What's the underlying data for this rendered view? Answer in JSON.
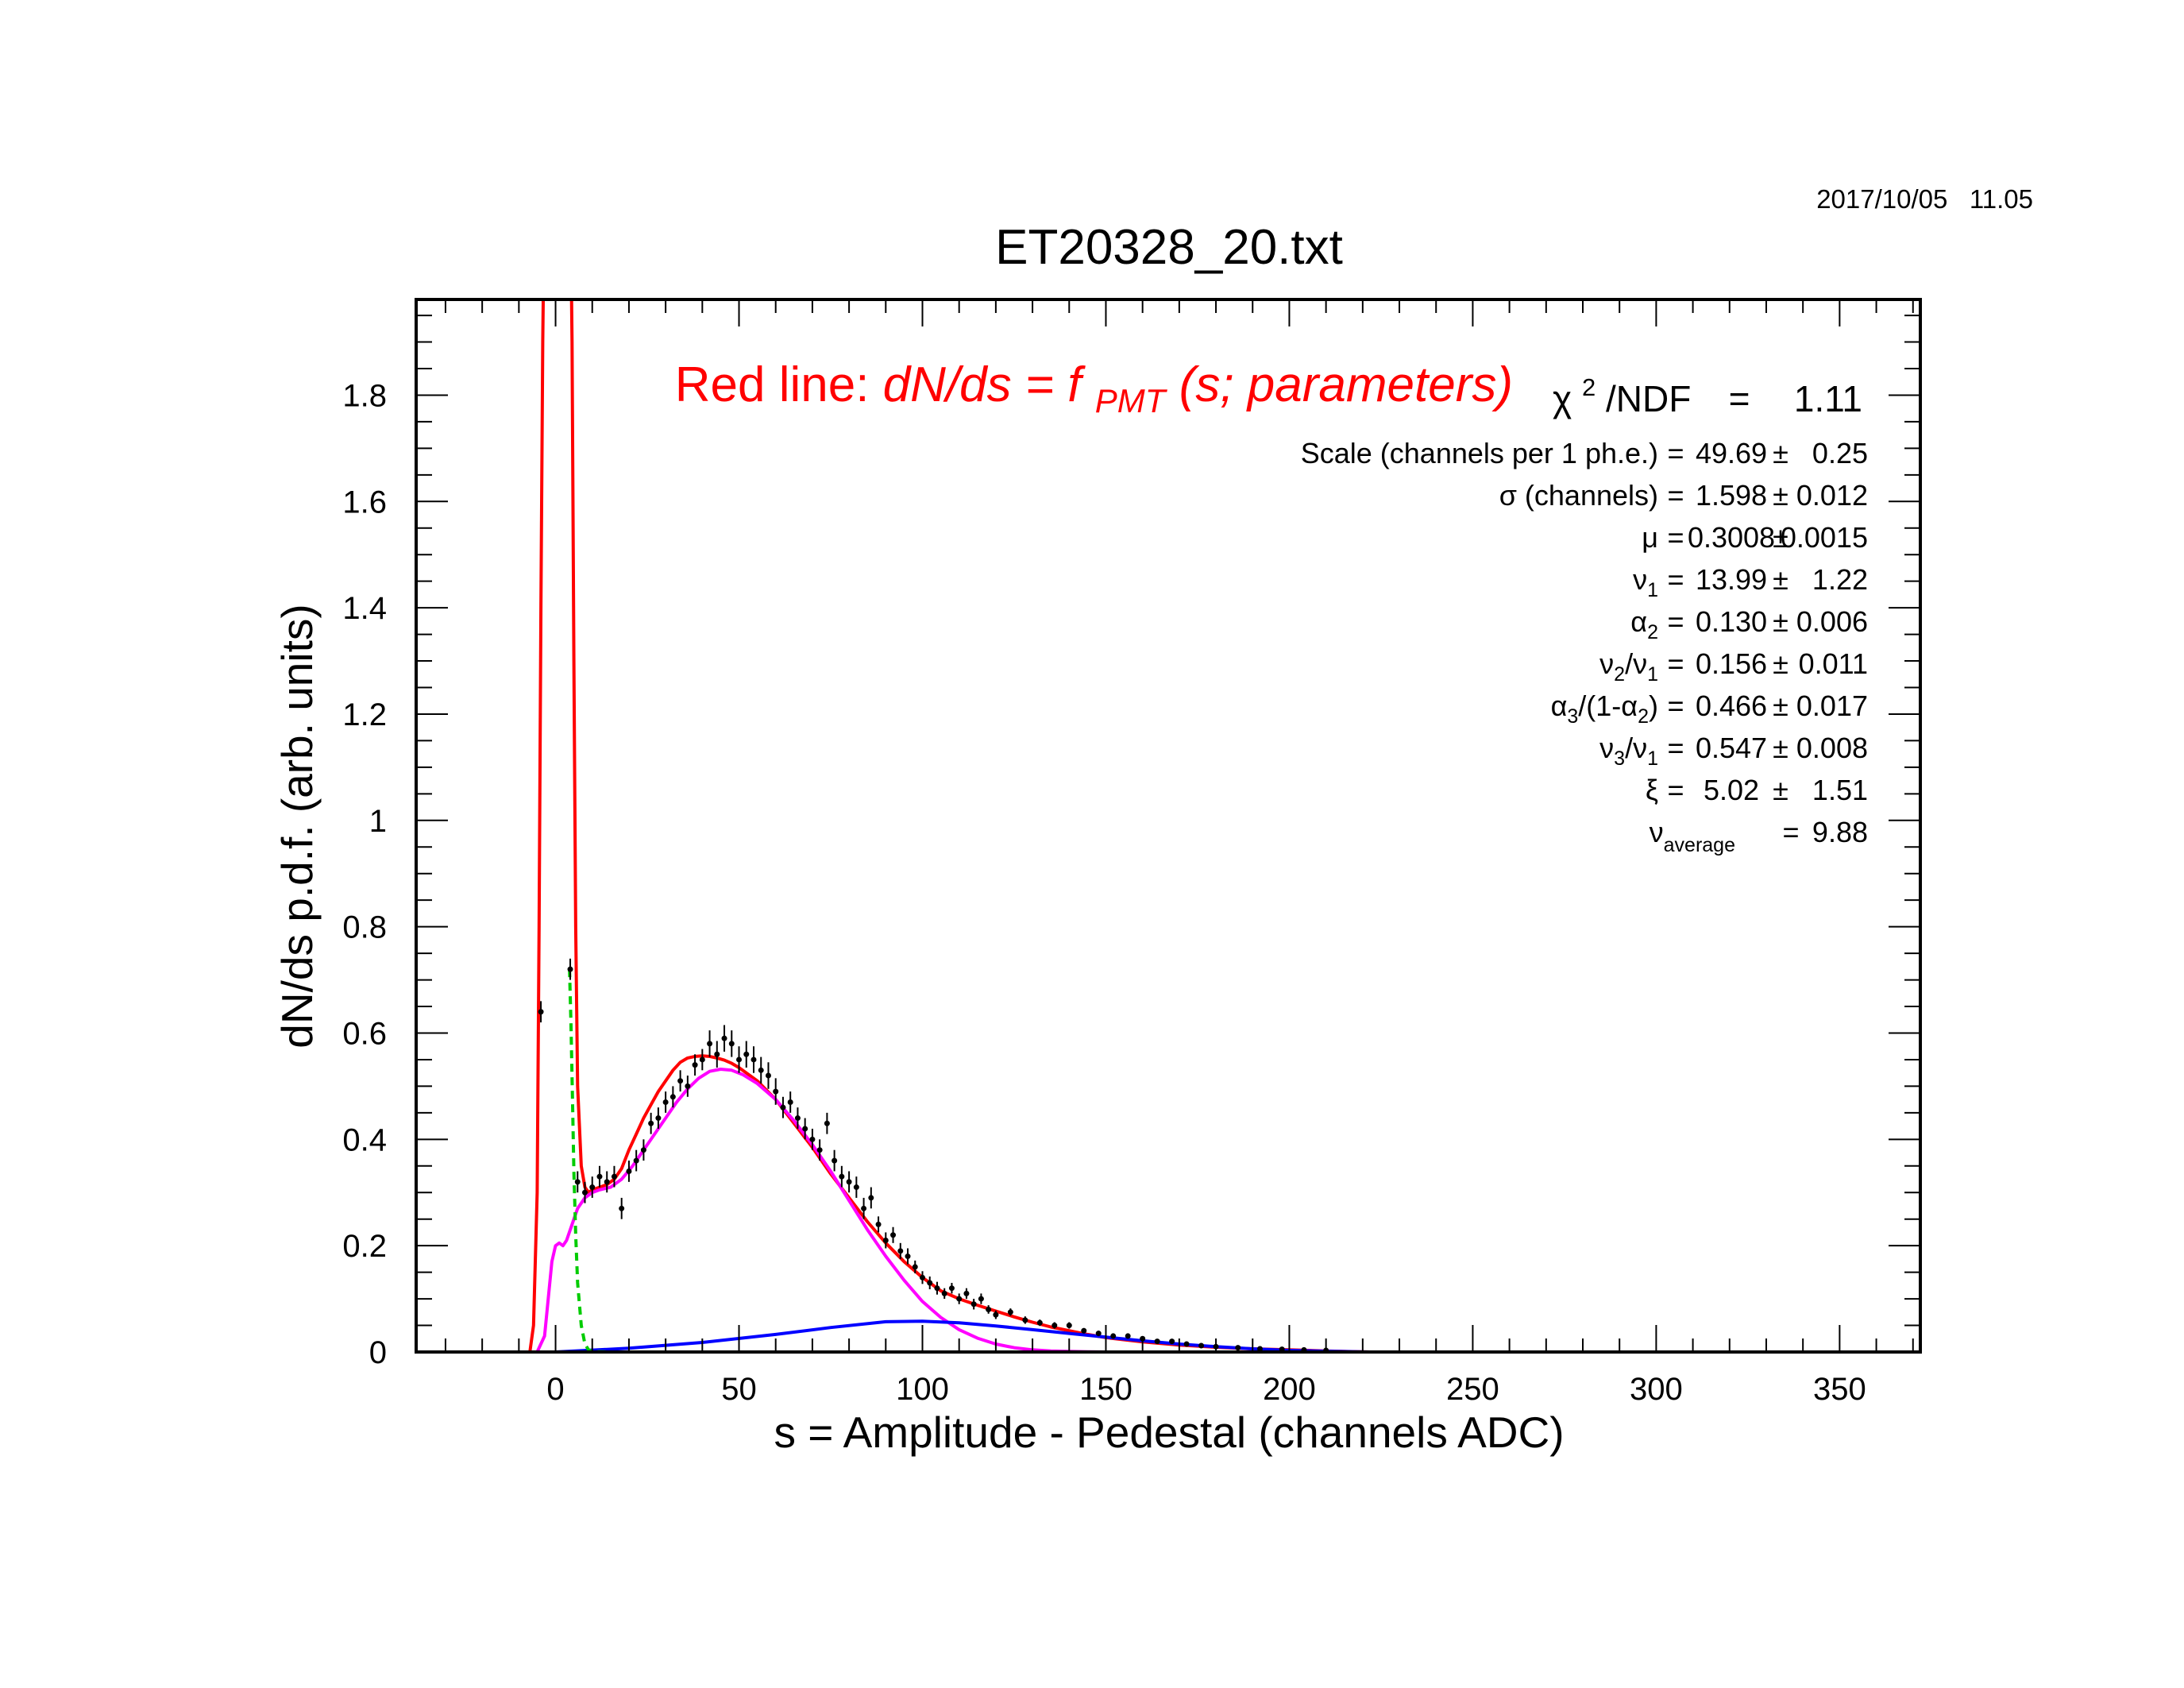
{
  "timestamp": "2017/10/05   11.05",
  "chart_data": {
    "type": "line",
    "title": "ET20328_20.txt",
    "xlabel": "s = Amplitude - Pedestal (channels ADC)",
    "ylabel": "dN/ds p.d.f. (arb. units)",
    "xlim": [
      -38,
      372
    ],
    "ylim": [
      0,
      1.98
    ],
    "x_ticks": [
      0,
      50,
      100,
      150,
      200,
      250,
      300,
      350
    ],
    "y_ticks": [
      0,
      0.2,
      0.4,
      0.6,
      0.8,
      1,
      1.2,
      1.4,
      1.6,
      1.8
    ],
    "y_tick_labels": [
      "0",
      "0.2",
      "0.4",
      "0.6",
      "0.8",
      "1",
      "1.2",
      "1.4",
      "1.6",
      "1.8"
    ],
    "legend_text": {
      "prefix": "Red line:",
      "formula_main": "dN/ds = f",
      "formula_sub": "PMT",
      "formula_tail": "(s; parameters)"
    },
    "fit_stats": {
      "chi2_label": "χ",
      "chi2_sup": "2",
      "chi2_rest": "/NDF",
      "chi2_eq": "=",
      "chi2_value": "1.11",
      "parameters": [
        {
          "name": "Scale (channels per 1 ph.e.)",
          "sub": "",
          "tail": "",
          "eq": "=",
          "value": "49.69",
          "pm": "±",
          "error": "0.25"
        },
        {
          "name": "σ (channels)",
          "sub": "",
          "tail": "",
          "eq": "=",
          "value": "1.598",
          "pm": "±",
          "error": "0.012"
        },
        {
          "name": "μ",
          "sub": "",
          "tail": "",
          "eq": "=",
          "value": "0.3008",
          "pm": "±",
          "error": "0.0015"
        },
        {
          "name": "ν",
          "sub": "1",
          "tail": "",
          "eq": "=",
          "value": "13.99",
          "pm": "±",
          "error": "1.22"
        },
        {
          "name": "α",
          "sub": "2",
          "tail": "",
          "eq": "=",
          "value": "0.130",
          "pm": "±",
          "error": "0.006"
        },
        {
          "name": "ν",
          "sub": "2",
          "tail": "/ν",
          "sub2": "1",
          "eq": "=",
          "value": "0.156",
          "pm": "±",
          "error": "0.011"
        },
        {
          "name": "α",
          "sub": "3",
          "tail": "/(1-α",
          "sub2": "2",
          "tail2": ")",
          "eq": "=",
          "value": "0.466",
          "pm": "±",
          "error": "0.017"
        },
        {
          "name": "ν",
          "sub": "3",
          "tail": "/ν",
          "sub2": "1",
          "eq": "=",
          "value": "0.547",
          "pm": "±",
          "error": "0.008"
        },
        {
          "name": "ξ",
          "sub": "",
          "tail": "",
          "eq": "=",
          "value": "5.02",
          "pm": "±",
          "error": "1.51"
        }
      ],
      "nu_average": {
        "name": "ν",
        "sub": "average",
        "eq": "=",
        "value": "9.88"
      }
    },
    "colors": {
      "total_fit": "#ff0000",
      "multi_pe": "#ff00ff",
      "background": "#0000ff",
      "pedestal": "#00cc00",
      "data": "#000000",
      "legend_text": "#ff0000"
    },
    "series": [
      {
        "kind": "curve",
        "color": "#ff0000",
        "x": [
          -7,
          -6,
          -5,
          -4.5,
          -4,
          -3.5,
          -3,
          4,
          4.5,
          5,
          5.5,
          6,
          7,
          8,
          9,
          10,
          12,
          14,
          16,
          18,
          20,
          22,
          24,
          26,
          28,
          30,
          32,
          34,
          36,
          38,
          40,
          42,
          44,
          46,
          48,
          50,
          55,
          60,
          65,
          70,
          75,
          80,
          85,
          90,
          95,
          100,
          105,
          110,
          115,
          120,
          125,
          130,
          135,
          140,
          145,
          150,
          160,
          170,
          180,
          190,
          200,
          210,
          222
        ],
        "y": [
          0,
          0.05,
          0.3,
          0.8,
          1.4,
          1.9,
          2.2,
          2.2,
          1.9,
          1.3,
          0.8,
          0.5,
          0.35,
          0.31,
          0.3,
          0.305,
          0.31,
          0.315,
          0.325,
          0.345,
          0.38,
          0.41,
          0.44,
          0.465,
          0.49,
          0.51,
          0.53,
          0.545,
          0.553,
          0.556,
          0.557,
          0.556,
          0.553,
          0.549,
          0.543,
          0.535,
          0.51,
          0.475,
          0.43,
          0.385,
          0.335,
          0.29,
          0.245,
          0.205,
          0.17,
          0.14,
          0.115,
          0.1,
          0.088,
          0.077,
          0.066,
          0.056,
          0.047,
          0.04,
          0.033,
          0.027,
          0.019,
          0.013,
          0.009,
          0.006,
          0.004,
          0.002,
          0
        ]
      },
      {
        "kind": "curve",
        "color": "#ff00ff",
        "x": [
          -5,
          -3,
          -2,
          -1,
          0,
          1,
          2,
          3,
          4,
          6,
          8,
          10,
          12,
          15,
          18,
          21,
          24,
          27,
          30,
          33,
          36,
          39,
          42,
          45,
          48,
          51,
          55,
          60,
          65,
          70,
          75,
          80,
          85,
          90,
          95,
          100,
          105,
          110,
          115,
          120,
          125,
          130,
          135,
          140,
          145,
          150
        ],
        "y": [
          0,
          0.03,
          0.1,
          0.17,
          0.2,
          0.205,
          0.2,
          0.21,
          0.23,
          0.27,
          0.29,
          0.3,
          0.305,
          0.31,
          0.325,
          0.35,
          0.38,
          0.41,
          0.44,
          0.47,
          0.495,
          0.515,
          0.528,
          0.532,
          0.53,
          0.522,
          0.505,
          0.475,
          0.435,
          0.39,
          0.34,
          0.285,
          0.23,
          0.18,
          0.135,
          0.095,
          0.065,
          0.042,
          0.026,
          0.015,
          0.008,
          0.004,
          0.002,
          0.001,
          0.0005,
          0
        ]
      },
      {
        "kind": "curve",
        "color": "#0000ff",
        "x": [
          0,
          20,
          40,
          60,
          75,
          90,
          100,
          110,
          120,
          130,
          140,
          150,
          160,
          170,
          180,
          190,
          200,
          210,
          222
        ],
        "y": [
          0,
          0.007,
          0.018,
          0.033,
          0.046,
          0.057,
          0.058,
          0.055,
          0.049,
          0.042,
          0.035,
          0.028,
          0.021,
          0.015,
          0.01,
          0.006,
          0.003,
          0.0015,
          0
        ]
      },
      {
        "kind": "curve",
        "color": "#00cc00",
        "dashed": true,
        "x": [
          3.8,
          4.2,
          4.6,
          5,
          5.5,
          6,
          7,
          8,
          9,
          10,
          15,
          50,
          100,
          150,
          200,
          222
        ],
        "y": [
          0.72,
          0.62,
          0.48,
          0.34,
          0.22,
          0.13,
          0.05,
          0.015,
          0.004,
          0.001,
          0,
          0,
          0,
          0,
          0,
          0
        ]
      },
      {
        "kind": "points",
        "color": "#000000",
        "x": [
          -4,
          4,
          6,
          8,
          10,
          12,
          14,
          16,
          18,
          20,
          22,
          24,
          26,
          28,
          30,
          32,
          34,
          36,
          38,
          40,
          42,
          44,
          46,
          48,
          50,
          52,
          54,
          56,
          58,
          60,
          62,
          64,
          66,
          68,
          70,
          72,
          74,
          76,
          78,
          80,
          82,
          84,
          86,
          88,
          90,
          92,
          94,
          96,
          98,
          100,
          102,
          104,
          106,
          108,
          110,
          112,
          114,
          116,
          118,
          120,
          124,
          128,
          132,
          136,
          140,
          144,
          148,
          152,
          156,
          160,
          164,
          168,
          172,
          176,
          180,
          186,
          192,
          198,
          204,
          210
        ],
        "y": [
          0.64,
          0.72,
          0.32,
          0.3,
          0.31,
          0.33,
          0.32,
          0.33,
          0.27,
          0.34,
          0.36,
          0.38,
          0.43,
          0.44,
          0.47,
          0.48,
          0.51,
          0.5,
          0.54,
          0.55,
          0.58,
          0.56,
          0.59,
          0.58,
          0.55,
          0.56,
          0.55,
          0.53,
          0.52,
          0.49,
          0.46,
          0.47,
          0.44,
          0.42,
          0.4,
          0.38,
          0.43,
          0.36,
          0.33,
          0.32,
          0.31,
          0.27,
          0.29,
          0.24,
          0.21,
          0.22,
          0.19,
          0.18,
          0.16,
          0.14,
          0.13,
          0.12,
          0.11,
          0.12,
          0.1,
          0.11,
          0.09,
          0.1,
          0.08,
          0.07,
          0.075,
          0.06,
          0.055,
          0.05,
          0.05,
          0.04,
          0.035,
          0.03,
          0.03,
          0.025,
          0.02,
          0.02,
          0.015,
          0.012,
          0.01,
          0.008,
          0.006,
          0.005,
          0.004,
          0.003
        ],
        "err": [
          0.02,
          0.02,
          0.02,
          0.02,
          0.02,
          0.02,
          0.02,
          0.02,
          0.02,
          0.02,
          0.02,
          0.02,
          0.02,
          0.02,
          0.02,
          0.02,
          0.02,
          0.02,
          0.02,
          0.02,
          0.025,
          0.025,
          0.025,
          0.025,
          0.025,
          0.025,
          0.025,
          0.025,
          0.025,
          0.025,
          0.02,
          0.02,
          0.02,
          0.02,
          0.02,
          0.02,
          0.02,
          0.02,
          0.02,
          0.02,
          0.02,
          0.02,
          0.02,
          0.015,
          0.015,
          0.015,
          0.015,
          0.015,
          0.012,
          0.012,
          0.012,
          0.012,
          0.01,
          0.01,
          0.01,
          0.01,
          0.01,
          0.01,
          0.008,
          0.008,
          0.007,
          0.007,
          0.006,
          0.006,
          0.006,
          0.005,
          0.005,
          0.005,
          0.005,
          0.004,
          0.004,
          0.004,
          0.004,
          0.003,
          0.003,
          0.003,
          0.003,
          0.002,
          0.002,
          0.002
        ]
      }
    ]
  }
}
